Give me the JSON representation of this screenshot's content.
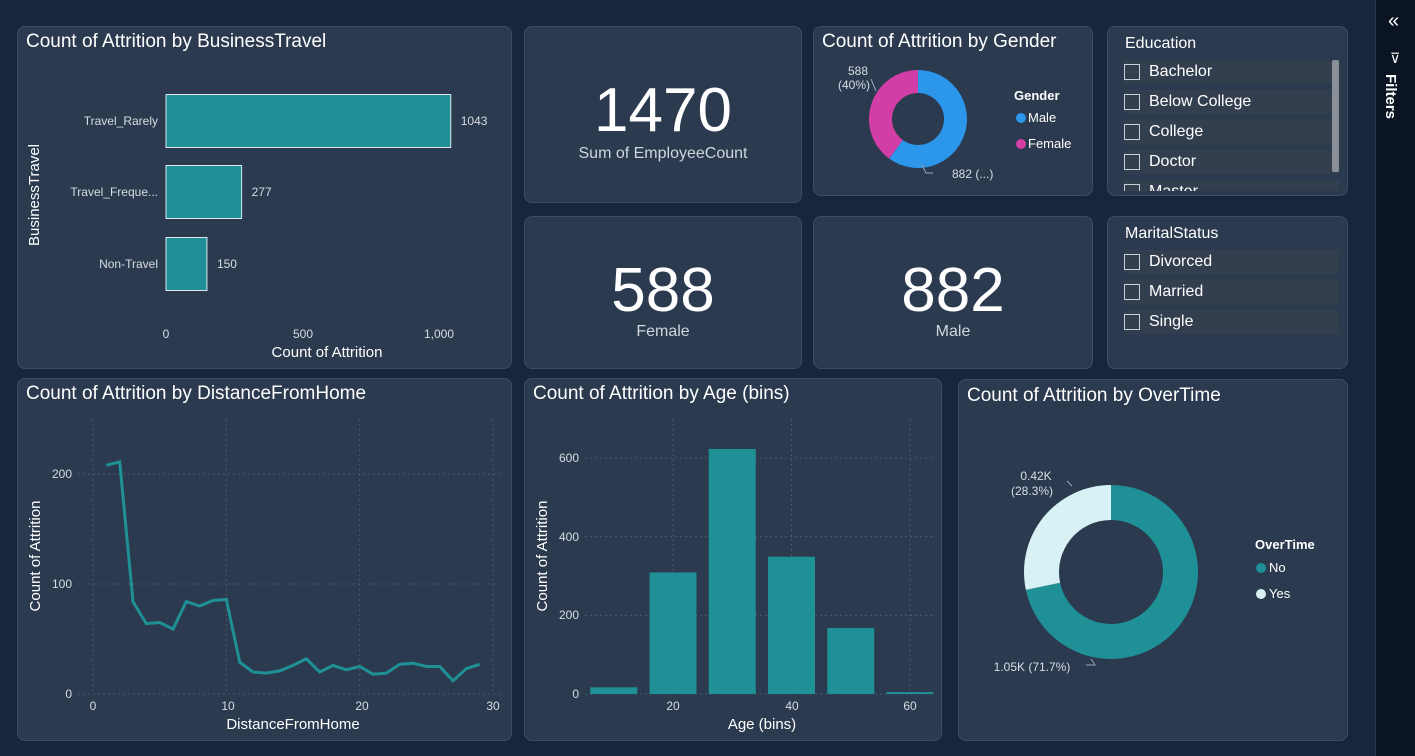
{
  "business_travel": {
    "title": "Count of Attrition by BusinessTravel",
    "y_axis_title": "BusinessTravel",
    "x_axis_title": "Count of Attrition",
    "x_ticks": [
      "0",
      "500",
      "1,000"
    ]
  },
  "kpi_total": {
    "value": "1470",
    "label": "Sum of EmployeeCount"
  },
  "kpi_female": {
    "value": "588",
    "label": "Female"
  },
  "kpi_male": {
    "value": "882",
    "label": "Male"
  },
  "gender": {
    "title": "Count of Attrition by Gender",
    "legend_title": "Gender",
    "female_label_line1": "588",
    "female_label_line2": "(40%)",
    "male_label": "882 (...)"
  },
  "education": {
    "title": "Education",
    "items": [
      "Bachelor",
      "Below College",
      "College",
      "Doctor",
      "Master"
    ]
  },
  "marital": {
    "title": "MaritalStatus",
    "items": [
      "Divorced",
      "Married",
      "Single"
    ]
  },
  "distance": {
    "title": "Count of Attrition by DistanceFromHome",
    "x_axis_title": "DistanceFromHome",
    "y_axis_title": "Count of Attrition",
    "x_ticks": [
      "0",
      "10",
      "20",
      "30"
    ],
    "y_ticks": [
      "0",
      "100",
      "200"
    ]
  },
  "age": {
    "title": "Count of Attrition by Age (bins)",
    "x_axis_title": "Age (bins)",
    "y_axis_title": "Count of Attrition",
    "x_ticks": [
      "20",
      "40",
      "60"
    ],
    "y_ticks": [
      "0",
      "200",
      "400",
      "600"
    ]
  },
  "overtime": {
    "title": "Count of Attrition by OverTime",
    "legend_title": "OverTime",
    "yes_label_line1": "0.42K",
    "yes_label_line2": "(28.3%)",
    "no_label": "1.05K (71.7%)"
  },
  "filters_pane": {
    "label": "Filters",
    "collapse_icon": "double-chevron-left-icon",
    "funnel_icon": "funnel-icon"
  },
  "colors": {
    "teal": "#1e9096",
    "male": "#2b96ea",
    "female": "#d23da6",
    "yes": "#d7f1f4",
    "card": "#2b3a4e"
  },
  "chart_data": [
    {
      "type": "bar",
      "orientation": "horizontal",
      "title": "Count of Attrition by BusinessTravel",
      "xlabel": "Count of Attrition",
      "ylabel": "BusinessTravel",
      "categories": [
        "Travel_Rarely",
        "Travel_Freque...",
        "Non-Travel"
      ],
      "values": [
        1043,
        277,
        150
      ],
      "xlim": [
        0,
        1200
      ],
      "color": "#1e9096"
    },
    {
      "type": "pie",
      "title": "Count of Attrition by Gender",
      "categories": [
        "Male",
        "Female"
      ],
      "values": [
        882,
        588
      ],
      "colors": [
        "#2b96ea",
        "#d23da6"
      ]
    },
    {
      "type": "line",
      "title": "Count of Attrition by DistanceFromHome",
      "xlabel": "DistanceFromHome",
      "ylabel": "Count of Attrition",
      "x": [
        1,
        2,
        3,
        4,
        5,
        6,
        7,
        8,
        9,
        10,
        11,
        12,
        13,
        14,
        15,
        16,
        17,
        18,
        19,
        20,
        21,
        22,
        23,
        24,
        25,
        26,
        27,
        28,
        29
      ],
      "values": [
        208,
        211,
        84,
        64,
        65,
        59,
        84,
        80,
        85,
        86,
        29,
        20,
        19,
        21,
        26,
        32,
        20,
        26,
        22,
        25,
        18,
        19,
        27,
        28,
        25,
        25,
        12,
        23,
        27
      ],
      "xlim": [
        0,
        30
      ],
      "ylim": [
        0,
        240
      ],
      "grid": true,
      "color": "#1e9096"
    },
    {
      "type": "bar",
      "title": "Count of Attrition by Age (bins)",
      "xlabel": "Age (bins)",
      "ylabel": "Count of Attrition",
      "x": [
        10,
        20,
        30,
        40,
        50,
        60
      ],
      "values": [
        17,
        309,
        623,
        349,
        168,
        5
      ],
      "xlim": [
        5,
        65
      ],
      "ylim": [
        0,
        680
      ],
      "grid": true,
      "color": "#1e9096"
    },
    {
      "type": "pie",
      "title": "Count of Attrition by OverTime",
      "categories": [
        "No",
        "Yes"
      ],
      "values": [
        1054,
        416
      ],
      "colors": [
        "#1e9096",
        "#d7f1f4"
      ]
    }
  ]
}
